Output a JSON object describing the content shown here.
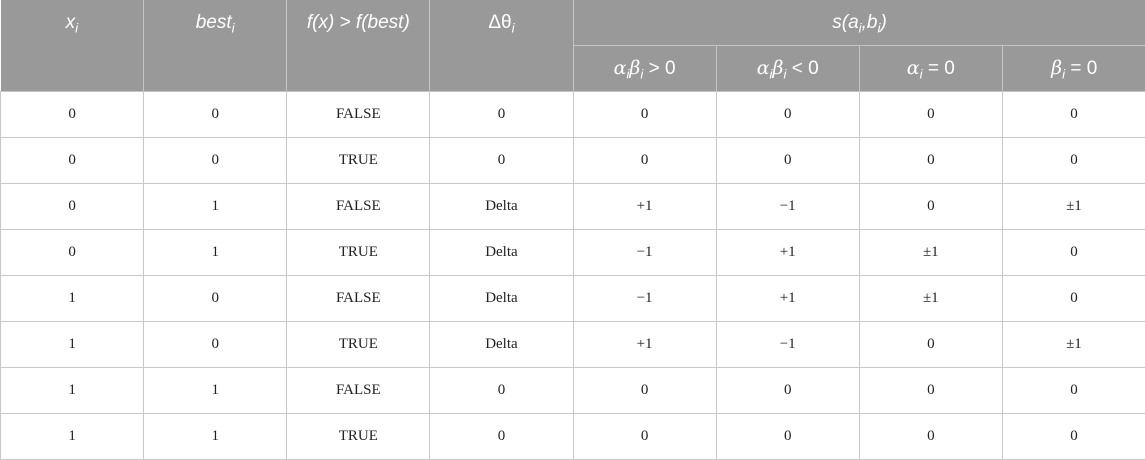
{
  "header": {
    "xi": {
      "base": "x",
      "sub": "i"
    },
    "besti": {
      "base": "best",
      "sub": "i"
    },
    "cmp": "f(x) > f(best)",
    "delta": {
      "base": "Δθ",
      "sub": "i"
    },
    "s": {
      "pre": "s(a",
      "sub1": "i",
      "mid": ",b",
      "sub2": "i",
      "post": ")"
    },
    "sub_cols": [
      {
        "a": "α",
        "a_sub": "i",
        "b": "β",
        "b_sub": "i",
        "rel": " > 0"
      },
      {
        "a": "α",
        "a_sub": "i",
        "b": "β",
        "b_sub": "i",
        "rel": " < 0"
      },
      {
        "a": "α",
        "a_sub": "i",
        "b": "",
        "b_sub": "",
        "rel": " = 0"
      },
      {
        "a": "β",
        "a_sub": "i",
        "b": "",
        "b_sub": "",
        "rel": " = 0"
      }
    ]
  },
  "rows": [
    [
      "0",
      "0",
      "FALSE",
      "0",
      "0",
      "0",
      "0",
      "0"
    ],
    [
      "0",
      "0",
      "TRUE",
      "0",
      "0",
      "0",
      "0",
      "0"
    ],
    [
      "0",
      "1",
      "FALSE",
      "Delta",
      "+1",
      "−1",
      "0",
      "±1"
    ],
    [
      "0",
      "1",
      "TRUE",
      "Delta",
      "−1",
      "+1",
      "±1",
      "0"
    ],
    [
      "1",
      "0",
      "FALSE",
      "Delta",
      "−1",
      "+1",
      "±1",
      "0"
    ],
    [
      "1",
      "0",
      "TRUE",
      "Delta",
      "+1",
      "−1",
      "0",
      "±1"
    ],
    [
      "1",
      "1",
      "FALSE",
      "0",
      "0",
      "0",
      "0",
      "0"
    ],
    [
      "1",
      "1",
      "TRUE",
      "0",
      "0",
      "0",
      "0",
      "0"
    ]
  ],
  "colors": {
    "header_bg": "#999999",
    "header_text": "#ffffff",
    "grid": "#c8c8c8"
  }
}
